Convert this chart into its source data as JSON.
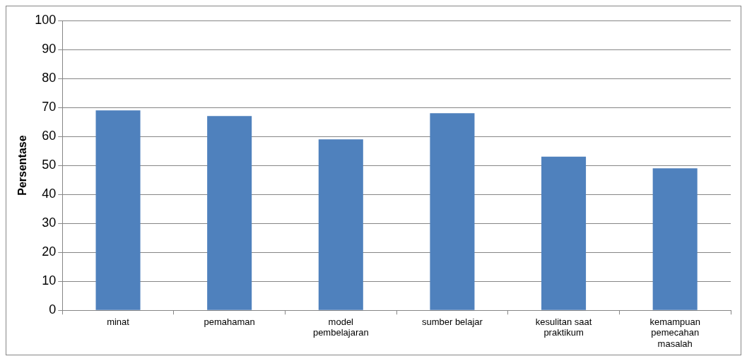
{
  "chart_data": {
    "type": "bar",
    "ylabel": "Persentase",
    "categories": [
      "minat",
      "pemahaman",
      "model pembelajaran",
      "sumber belajar",
      "kesulitan saat praktikum",
      "kemampuan pemecahan masalah"
    ],
    "values": [
      69,
      67,
      59,
      68,
      53,
      49
    ],
    "color": "#4f81bd",
    "ylim": [
      0,
      100
    ],
    "yticks": [
      0,
      10,
      20,
      30,
      40,
      50,
      60,
      70,
      80,
      90,
      100
    ],
    "grid": "y",
    "legend": false
  }
}
